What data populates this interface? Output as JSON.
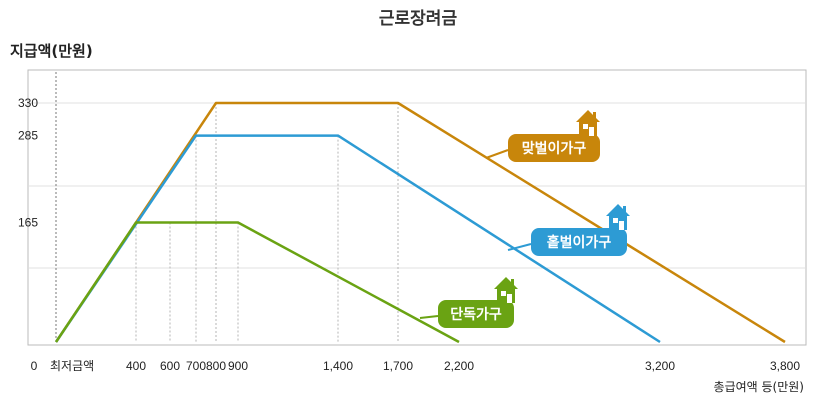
{
  "chart_data": {
    "type": "line",
    "title": "근로장려금",
    "ylabel": "지급액(만원)",
    "xlabel": "총급여액 등(만원)",
    "x_min_label": "최저금액",
    "x_ticks": [
      {
        "value": 0,
        "label": "0"
      },
      {
        "value": 400,
        "label": "400"
      },
      {
        "value": 600,
        "label": "600"
      },
      {
        "value": 700,
        "label": "700"
      },
      {
        "value": 800,
        "label": "800"
      },
      {
        "value": 900,
        "label": "900"
      },
      {
        "value": 1400,
        "label": "1,400"
      },
      {
        "value": 1700,
        "label": "1,700"
      },
      {
        "value": 2200,
        "label": "2,200"
      },
      {
        "value": 3200,
        "label": "3,200"
      },
      {
        "value": 3800,
        "label": "3,800"
      }
    ],
    "y_ticks": [
      {
        "value": 165,
        "label": "165"
      },
      {
        "value": 285,
        "label": "285"
      },
      {
        "value": 330,
        "label": "330"
      }
    ],
    "xlim": [
      0,
      3800
    ],
    "ylim": [
      0,
      330
    ],
    "series": [
      {
        "name": "맞벌이가구",
        "color": "#c8860b",
        "icon": "house-icon",
        "points": [
          [
            0,
            0
          ],
          [
            800,
            330
          ],
          [
            1700,
            330
          ],
          [
            3800,
            0
          ]
        ]
      },
      {
        "name": "홑벌이가구",
        "color": "#2d9bd4",
        "icon": "house-icon",
        "points": [
          [
            0,
            0
          ],
          [
            700,
            285
          ],
          [
            1400,
            285
          ],
          [
            3200,
            0
          ]
        ]
      },
      {
        "name": "단독가구",
        "color": "#6aa313",
        "icon": "house-icon",
        "points": [
          [
            0,
            0
          ],
          [
            400,
            165
          ],
          [
            900,
            165
          ],
          [
            2200,
            0
          ]
        ]
      }
    ]
  }
}
